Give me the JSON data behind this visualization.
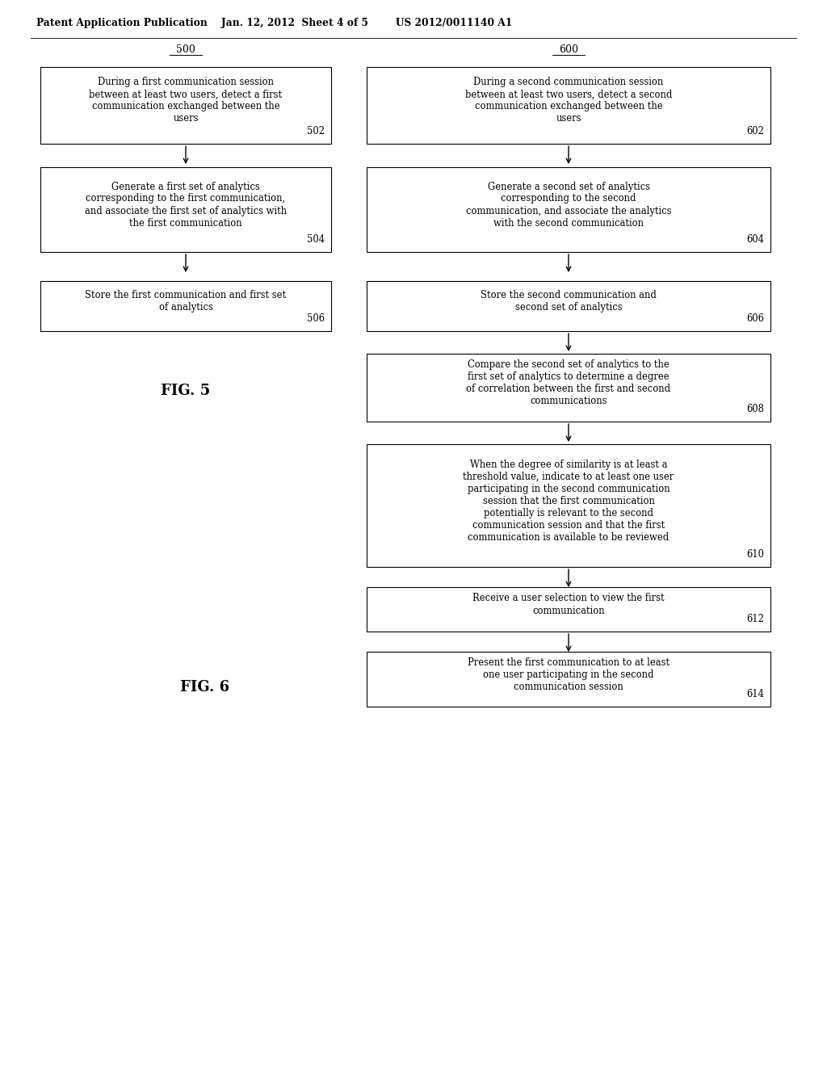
{
  "background_color": "#ffffff",
  "header": "Patent Application Publication    Jan. 12, 2012  Sheet 4 of 5        US 2012/0011140 A1",
  "fig5_label": "500",
  "fig6_label": "600",
  "fig5_caption": "FIG. 5",
  "fig6_caption": "FIG. 6",
  "fig5_boxes": [
    {
      "text": "During a first communication session\nbetween at least two users, detect a first\ncommunication exchanged between the\nusers",
      "step": "502"
    },
    {
      "text": "Generate a first set of analytics\ncorresponding to the first communication,\nand associate the first set of analytics with\nthe first communication",
      "step": "504"
    },
    {
      "text": "Store the first communication and first set\nof analytics",
      "step": "506"
    }
  ],
  "fig6_boxes": [
    {
      "text": "During a second communication session\nbetween at least two users, detect a second\ncommunication exchanged between the\nusers",
      "step": "602"
    },
    {
      "text": "Generate a second set of analytics\ncorresponding to the second\ncommunication, and associate the analytics\nwith the second communication",
      "step": "604"
    },
    {
      "text": "Store the second communication and\nsecond set of analytics",
      "step": "606"
    },
    {
      "text": "Compare the second set of analytics to the\nfirst set of analytics to determine a degree\nof correlation between the first and second\ncommunications",
      "step": "608"
    },
    {
      "text": "When the degree of similarity is at least a\nthreshold value, indicate to at least one user\nparticipating in the second communication\nsession that the first communication\npotentially is relevant to the second\ncommunication session and that the first\ncommunication is available to be reviewed",
      "step": "610"
    },
    {
      "text": "Receive a user selection to view the first\ncommunication",
      "step": "612"
    },
    {
      "text": "Present the first communication to at least\none user participating in the second\ncommunication session",
      "step": "614"
    }
  ]
}
